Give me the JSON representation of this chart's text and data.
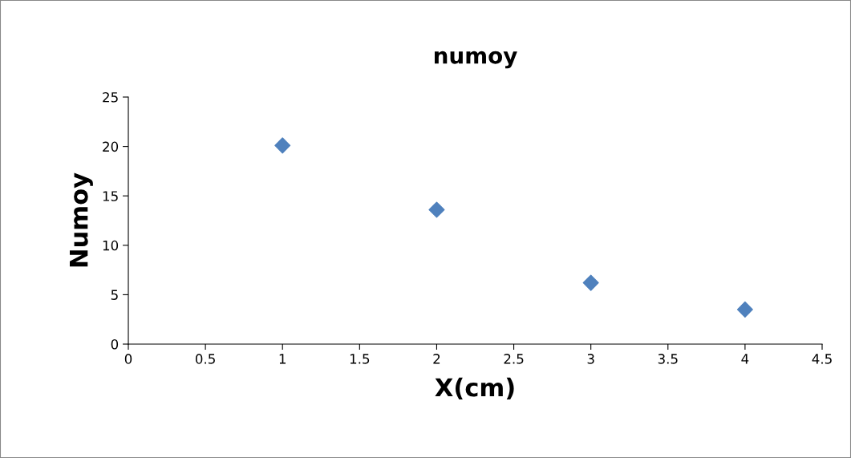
{
  "chart_data": {
    "type": "scatter",
    "title": "numoy",
    "xlabel": "X(cm)",
    "ylabel": "Numoy",
    "x": [
      1,
      2,
      3,
      4
    ],
    "series": [
      {
        "color": "#4f81bd",
        "values": [
          20.1,
          13.6,
          6.2,
          3.5
        ]
      }
    ],
    "marker": "diamond",
    "xlim": [
      0,
      4.5
    ],
    "xticks": [
      0,
      0.5,
      1,
      1.5,
      2,
      2.5,
      3,
      3.5,
      4,
      4.5
    ],
    "ylim": [
      0,
      25
    ],
    "yticks": [
      0,
      5,
      10,
      15,
      20,
      25
    ],
    "grid": false,
    "legend": false
  }
}
